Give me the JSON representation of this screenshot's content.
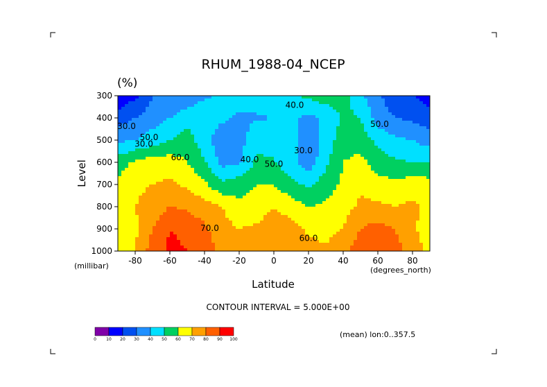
{
  "chart_data": {
    "type": "heatmap",
    "title": "RHUM_1988-04_NCEP",
    "units": "(%)",
    "xlabel": "Latitude",
    "ylabel": "Level",
    "x_unit_label": "(degrees_north)",
    "y_unit_label": "(millibar)",
    "x_ticks": [
      "-80",
      "-60",
      "-40",
      "-20",
      "0",
      "20",
      "40",
      "60",
      "80"
    ],
    "x_tick_values": [
      -80,
      -60,
      -40,
      -20,
      0,
      20,
      40,
      60,
      80
    ],
    "y_ticks": [
      "300",
      "400",
      "500",
      "600",
      "700",
      "800",
      "900",
      "1000"
    ],
    "y_tick_values": [
      300,
      400,
      500,
      600,
      700,
      800,
      900,
      1000
    ],
    "xlim": [
      -90,
      90
    ],
    "ylim": [
      1000,
      300
    ],
    "contour_interval_text": "CONTOUR INTERVAL = 5.000E+00",
    "footnote": "(mean) lon:0..357.5",
    "contour_labels": [
      {
        "text": "40.0",
        "x": 12,
        "y": 355
      },
      {
        "text": "30.0",
        "x": -85,
        "y": 450
      },
      {
        "text": "30.0",
        "x": -75,
        "y": 530
      },
      {
        "text": "50.0",
        "x": -72,
        "y": 500
      },
      {
        "text": "60.0",
        "x": -54,
        "y": 590
      },
      {
        "text": "40.0",
        "x": -14,
        "y": 600
      },
      {
        "text": "30.0",
        "x": 17,
        "y": 560
      },
      {
        "text": "50.0",
        "x": 0,
        "y": 620
      },
      {
        "text": "70.0",
        "x": -37,
        "y": 910
      },
      {
        "text": "60.0",
        "x": 20,
        "y": 955
      },
      {
        "text": "50.0",
        "x": 61,
        "y": 440
      }
    ],
    "colorbar": {
      "ticks": [
        "0",
        "10",
        "20",
        "30",
        "40",
        "50",
        "60",
        "70",
        "80",
        "90",
        "100"
      ],
      "colors": [
        "#8000a8",
        "#0000ff",
        "#0050f0",
        "#2090ff",
        "#00e0ff",
        "#00d060",
        "#ffff00",
        "#ffa000",
        "#ff6000",
        "#ff0000"
      ]
    },
    "levels": [
      {
        "min": 20,
        "color": "#0000ff"
      },
      {
        "min": 30,
        "color": "#0050f0"
      },
      {
        "min": 40,
        "color": "#2090ff"
      },
      {
        "min": 50,
        "color": "#00e0ff"
      },
      {
        "min": 60,
        "color": "#00d060"
      },
      {
        "min": 70,
        "color": "#ffff00"
      },
      {
        "min": 80,
        "color": "#ffa000"
      },
      {
        "min": 90,
        "color": "#ff6000"
      },
      {
        "min": 100,
        "color": "#ff0000"
      }
    ],
    "grid": {
      "lats": [
        -90,
        -80,
        -70,
        -60,
        -50,
        -40,
        -30,
        -20,
        -10,
        0,
        10,
        20,
        30,
        40,
        50,
        60,
        70,
        80,
        90
      ],
      "levels_mb": [
        300,
        400,
        500,
        600,
        700,
        800,
        900,
        1000
      ],
      "rhum": [
        [
          12,
          18,
          30,
          32,
          34,
          38,
          43,
          45,
          44,
          45,
          49,
          52,
          56,
          54,
          42,
          32,
          24,
          20,
          15
        ],
        [
          25,
          30,
          35,
          40,
          45,
          48,
          42,
          38,
          39,
          40,
          41,
          38,
          41,
          52,
          50,
          35,
          30,
          28,
          24
        ],
        [
          38,
          40,
          45,
          50,
          55,
          44,
          33,
          36,
          46,
          47,
          45,
          31,
          44,
          56,
          56,
          47,
          42,
          40,
          35
        ],
        [
          55,
          62,
          65,
          65,
          60,
          51,
          37,
          38,
          52,
          51,
          43,
          34,
          48,
          60,
          63,
          55,
          52,
          50,
          50
        ],
        [
          62,
          68,
          70,
          72,
          68,
          62,
          52,
          56,
          60,
          60,
          53,
          48,
          55,
          62,
          68,
          64,
          62,
          66,
          64
        ],
        [
          62,
          70,
          74,
          80,
          78,
          74,
          70,
          62,
          64,
          70,
          65,
          60,
          62,
          66,
          72,
          72,
          70,
          72,
          68
        ],
        [
          60,
          68,
          80,
          90,
          88,
          82,
          74,
          70,
          72,
          76,
          74,
          68,
          66,
          70,
          80,
          84,
          80,
          72,
          64
        ],
        [
          60,
          70,
          85,
          92,
          90,
          84,
          78,
          75,
          78,
          80,
          78,
          74,
          72,
          78,
          86,
          88,
          84,
          75,
          68
        ]
      ]
    }
  }
}
